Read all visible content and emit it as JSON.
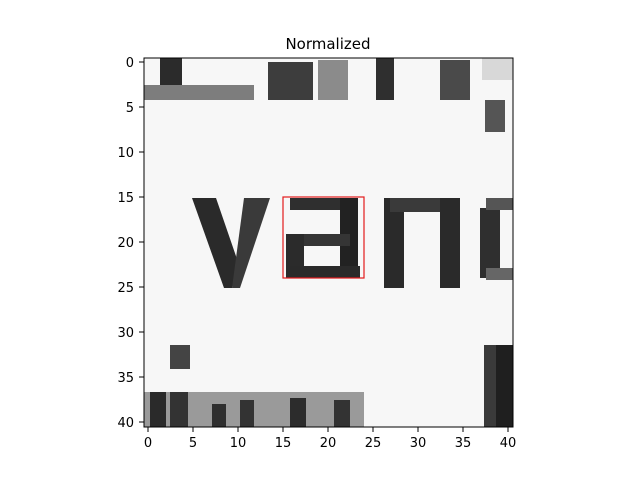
{
  "chart_data": {
    "type": "heatmap",
    "title": "Normalized",
    "x_ticks": [
      "0",
      "5",
      "10",
      "15",
      "20",
      "25",
      "30",
      "35",
      "40"
    ],
    "y_ticks": [
      "0",
      "5",
      "10",
      "15",
      "20",
      "25",
      "30",
      "35",
      "40"
    ],
    "x_range": [
      -0.5,
      40.5
    ],
    "y_range": [
      -0.5,
      40.5
    ],
    "colormap": "gray",
    "highlight_box": {
      "x0": 15,
      "y0": 15,
      "x1": 24,
      "y1": 24,
      "color": "#e31a1c"
    },
    "visible_text_in_image": [
      "van"
    ]
  }
}
